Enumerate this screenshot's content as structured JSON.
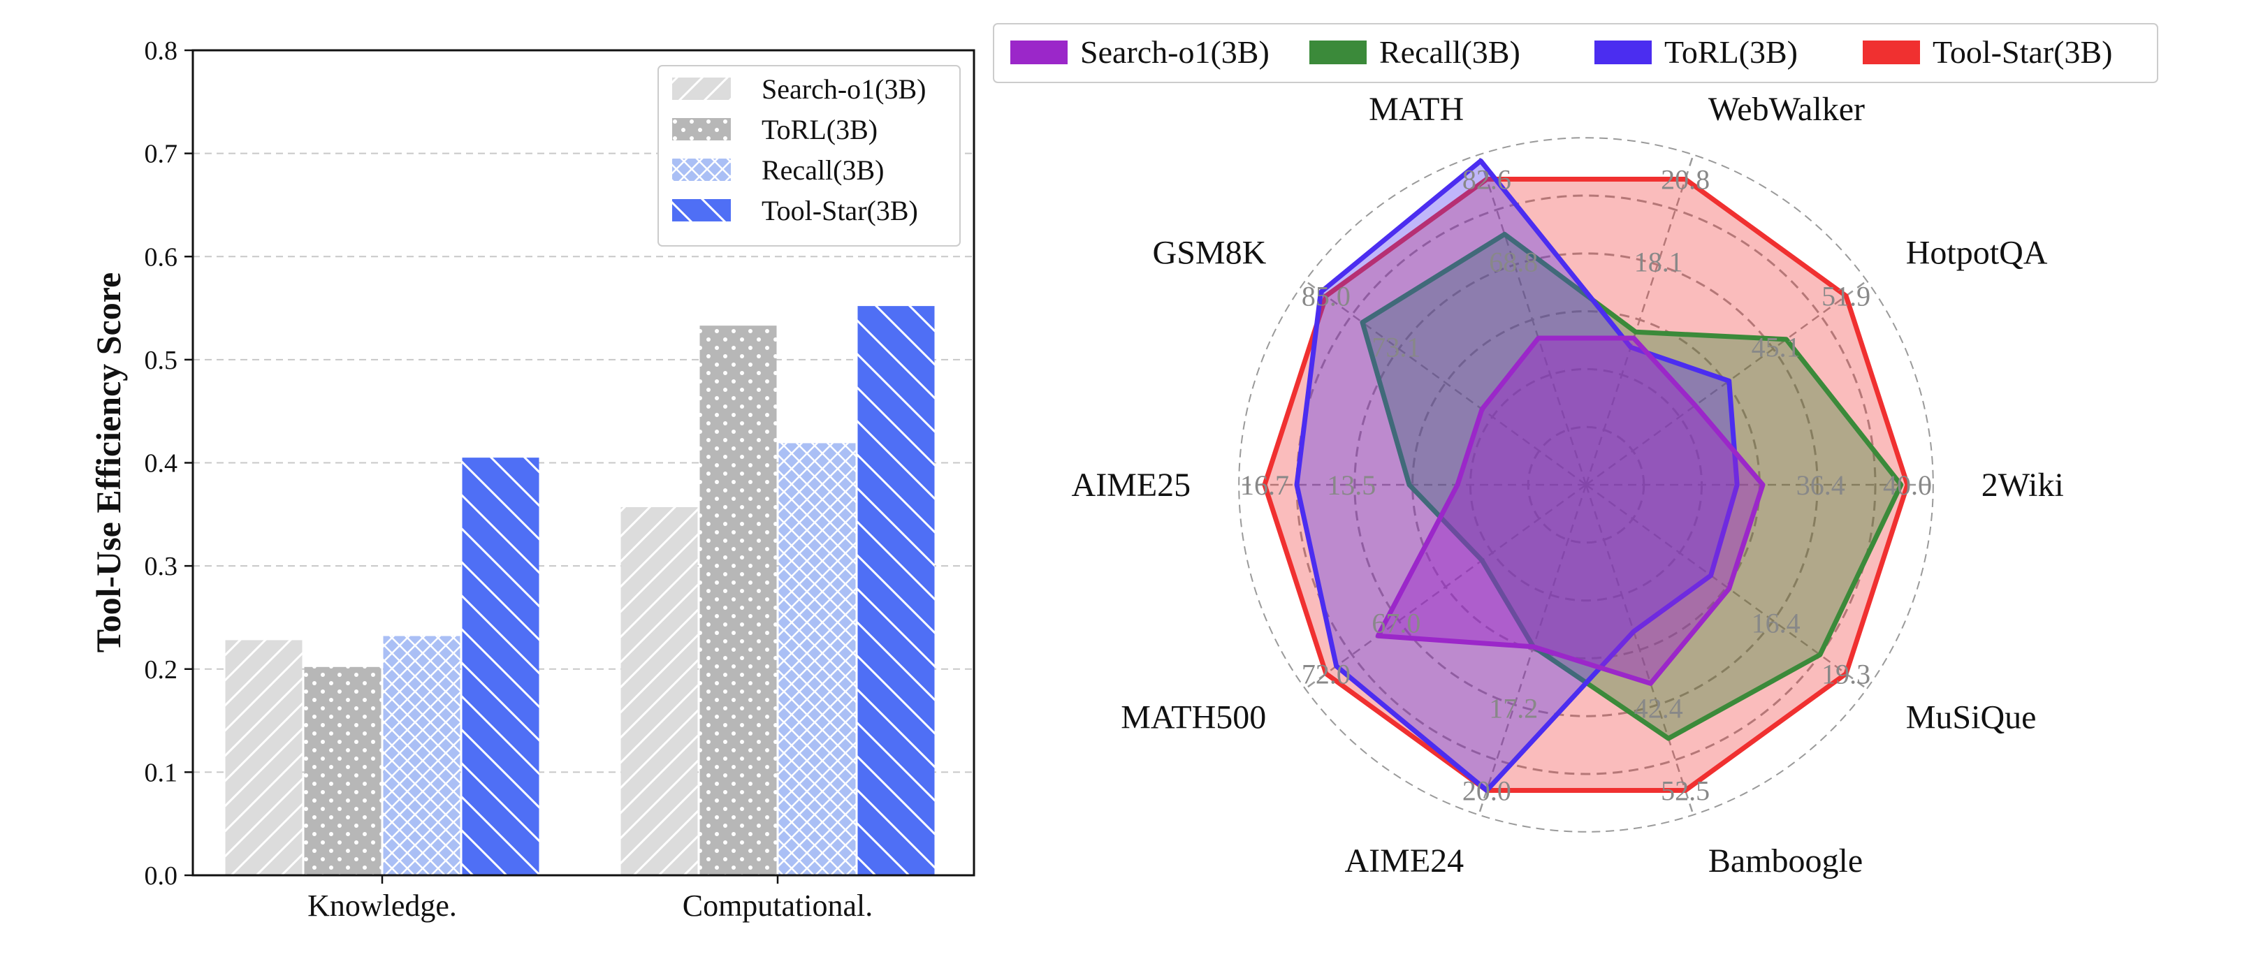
{
  "chart_data": [
    {
      "type": "bar",
      "ylabel": "Tool-Use Efficiency Score",
      "ylim": [
        0,
        0.8
      ],
      "yticks": [
        "0.0",
        "0.1",
        "0.2",
        "0.3",
        "0.4",
        "0.5",
        "0.6",
        "0.7",
        "0.8"
      ],
      "grid": "horizontal dashed",
      "legend_position": "top-right",
      "categories": [
        "Knowledge.",
        "Computational."
      ],
      "series": [
        {
          "name": "Search-o1(3B)",
          "values": [
            0.228,
            0.357
          ],
          "color": "#dcdcdc",
          "pattern": "diagonal-lines"
        },
        {
          "name": "ToRL(3B)",
          "values": [
            0.202,
            0.533
          ],
          "color": "#b7b7b7",
          "pattern": "dots"
        },
        {
          "name": "Recall(3B)",
          "values": [
            0.232,
            0.419
          ],
          "color": "#aabff5",
          "pattern": "crosshatch"
        },
        {
          "name": "Tool-Star(3B)",
          "values": [
            0.405,
            0.552
          ],
          "color": "#4f6ff5",
          "pattern": "back-diagonal-lines"
        }
      ]
    },
    {
      "type": "radar",
      "legend_position": "top",
      "axes": [
        "2Wiki",
        "HotpotQA",
        "WebWalker",
        "MATH",
        "GSM8K",
        "AIME25",
        "MATH500",
        "AIME24",
        "Bamboogle",
        "MuSiQue"
      ],
      "axis_tick_labels": {
        "2Wiki": [
          "36.4",
          "40.0"
        ],
        "HotpotQA": [
          "45.1",
          "51.9"
        ],
        "WebWalker": [
          "18.1",
          "20.8"
        ],
        "MATH": [
          "68.8",
          "82.6"
        ],
        "GSM8K": [
          "73.1",
          "85.0"
        ],
        "AIME25": [
          "13.5",
          "16.7"
        ],
        "MATH500": [
          "67.0",
          "72.0"
        ],
        "AIME24": [
          "17.2",
          "20.0"
        ],
        "Bamboogle": [
          "42.4",
          "52.5"
        ],
        "MuSiQue": [
          "16.4",
          "19.3"
        ]
      },
      "series": [
        {
          "name": "Search-o1(3B)",
          "color": "#9b27c9",
          "values": [
            0.55,
            0.42,
            0.48,
            0.48,
            0.4,
            0.4,
            0.8,
            0.53,
            0.65,
            0.55
          ]
        },
        {
          "name": "Recall(3B)",
          "color": "#3b8a3a",
          "values": [
            0.98,
            0.77,
            0.5,
            0.82,
            0.86,
            0.55,
            0.4,
            0.53,
            0.83,
            0.9
          ]
        },
        {
          "name": "ToRL(3B)",
          "color": "#4b2df0",
          "values": [
            0.47,
            0.55,
            0.45,
            1.06,
            1.02,
            0.9,
            0.96,
            1.0,
            0.48,
            0.48
          ]
        },
        {
          "name": "Tool-Star(3B)",
          "color": "#f03030",
          "values": [
            1.0,
            1.0,
            1.0,
            1.0,
            1.0,
            1.0,
            1.0,
            1.0,
            1.0,
            1.0
          ]
        }
      ]
    }
  ]
}
